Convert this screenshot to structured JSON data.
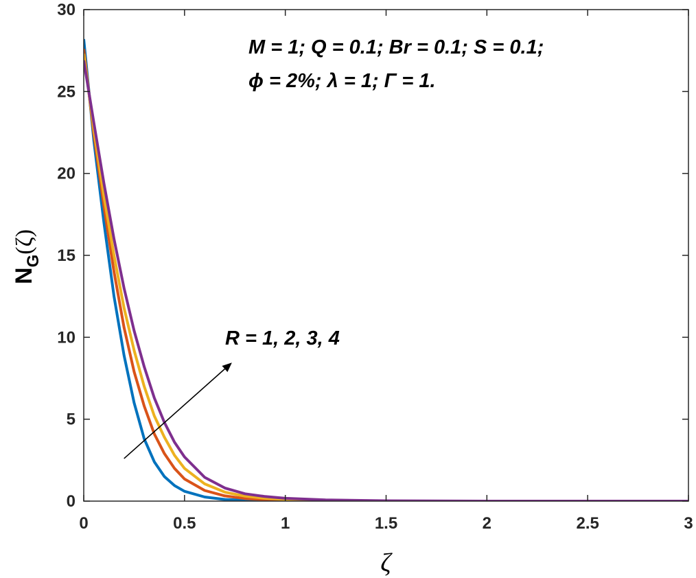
{
  "chart_data": {
    "type": "line",
    "title": "",
    "xlabel": "ζ",
    "ylabel": "N_G(ζ)",
    "ylabel_main": "N",
    "ylabel_sub": "G",
    "ylabel_arg": "(ζ)",
    "xlim": [
      0,
      3
    ],
    "ylim": [
      0,
      30
    ],
    "x_ticks": [
      0,
      0.5,
      1,
      1.5,
      2,
      2.5,
      3
    ],
    "x_tick_labels": [
      "0",
      "0.5",
      "1",
      "1.5",
      "2",
      "2.5",
      "3"
    ],
    "y_ticks": [
      0,
      5,
      10,
      15,
      20,
      25,
      30
    ],
    "y_tick_labels": [
      "0",
      "5",
      "10",
      "15",
      "20",
      "25",
      "30"
    ],
    "grid": false,
    "legend": "none",
    "annotations": {
      "params_line1": "M = 1; Q = 0.1; Br = 0.1; S = 0.1;",
      "params_line2": "ϕ = 2%; λ = 1; Γ = 1.",
      "arrow_label": "R = 1, 2, 3, 4",
      "arrow_from": [
        0.2,
        2.6
      ],
      "arrow_to": [
        0.73,
        8.4
      ]
    },
    "x": [
      0,
      0.05,
      0.1,
      0.15,
      0.2,
      0.25,
      0.3,
      0.35,
      0.4,
      0.45,
      0.5,
      0.6,
      0.7,
      0.8,
      0.9,
      1.0,
      1.2,
      1.5,
      2.0,
      2.5,
      3.0
    ],
    "series": [
      {
        "name": "R = 1",
        "color": "#0072BD",
        "values": [
          28.2,
          22.0,
          17.0,
          12.5,
          8.9,
          6.0,
          3.8,
          2.4,
          1.5,
          0.95,
          0.6,
          0.25,
          0.1,
          0.05,
          0.02,
          0.01,
          0.0,
          0.0,
          0.0,
          0.0,
          0.0
        ]
      },
      {
        "name": "R = 2",
        "color": "#D95319",
        "values": [
          27.6,
          22.4,
          18.0,
          14.0,
          10.6,
          7.9,
          5.8,
          4.1,
          2.9,
          2.0,
          1.35,
          0.65,
          0.32,
          0.16,
          0.09,
          0.05,
          0.02,
          0.0,
          0.0,
          0.0,
          0.0
        ]
      },
      {
        "name": "R = 3",
        "color": "#EDB120",
        "values": [
          27.3,
          22.7,
          18.6,
          15.0,
          11.8,
          9.2,
          7.0,
          5.2,
          3.9,
          2.8,
          2.0,
          1.05,
          0.55,
          0.3,
          0.17,
          0.1,
          0.04,
          0.0,
          0.0,
          0.0,
          0.0
        ]
      },
      {
        "name": "R = 4",
        "color": "#7E2F8E",
        "values": [
          26.9,
          23.1,
          19.4,
          16.0,
          13.0,
          10.4,
          8.2,
          6.3,
          4.8,
          3.6,
          2.7,
          1.45,
          0.8,
          0.45,
          0.28,
          0.17,
          0.07,
          0.02,
          0.0,
          0.0,
          0.0
        ]
      }
    ]
  }
}
